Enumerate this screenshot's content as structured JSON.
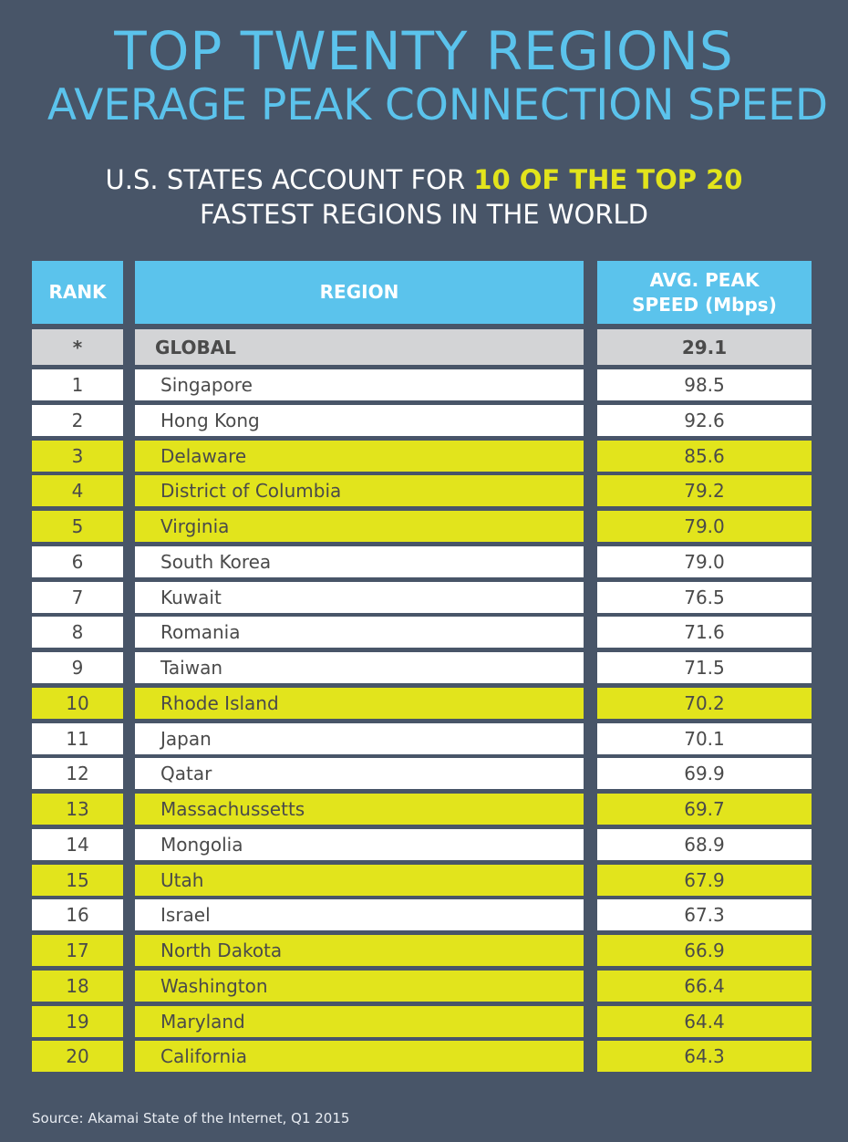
{
  "title_line1": "TOP TWENTY REGIONS",
  "title_line2": "AVERAGE PEAK CONNECTION SPEED",
  "subtitle": {
    "pre": "U.S. STATES ACCOUNT FOR ",
    "highlight": "10 OF THE TOP 20",
    "line2": "FASTEST REGIONS IN THE WORLD"
  },
  "colors": {
    "background": "#485568",
    "header": "#5bc3ec",
    "us_state_highlight": "#e2e41c",
    "global_row": "#d3d4d6",
    "row": "#ffffff"
  },
  "source": "Source: Akamai State of the Internet, Q1 2015",
  "chart_data": {
    "type": "table",
    "columns": [
      "RANK",
      "REGION",
      "AVG. PEAK SPEED (Mbps)"
    ],
    "global": {
      "rank": "*",
      "region": "GLOBAL",
      "speed": "29.1"
    },
    "rows": [
      {
        "rank": "1",
        "region": "Singapore",
        "speed": "98.5",
        "us_state": false
      },
      {
        "rank": "2",
        "region": "Hong Kong",
        "speed": "92.6",
        "us_state": false
      },
      {
        "rank": "3",
        "region": "Delaware",
        "speed": "85.6",
        "us_state": true
      },
      {
        "rank": "4",
        "region": "District of Columbia",
        "speed": "79.2",
        "us_state": true
      },
      {
        "rank": "5",
        "region": "Virginia",
        "speed": "79.0",
        "us_state": true
      },
      {
        "rank": "6",
        "region": "South Korea",
        "speed": "79.0",
        "us_state": false
      },
      {
        "rank": "7",
        "region": "Kuwait",
        "speed": "76.5",
        "us_state": false
      },
      {
        "rank": "8",
        "region": "Romania",
        "speed": "71.6",
        "us_state": false
      },
      {
        "rank": "9",
        "region": "Taiwan",
        "speed": "71.5",
        "us_state": false
      },
      {
        "rank": "10",
        "region": "Rhode Island",
        "speed": "70.2",
        "us_state": true
      },
      {
        "rank": "11",
        "region": "Japan",
        "speed": "70.1",
        "us_state": false
      },
      {
        "rank": "12",
        "region": "Qatar",
        "speed": "69.9",
        "us_state": false
      },
      {
        "rank": "13",
        "region": "Massachussetts",
        "speed": "69.7",
        "us_state": true
      },
      {
        "rank": "14",
        "region": "Mongolia",
        "speed": "68.9",
        "us_state": false
      },
      {
        "rank": "15",
        "region": "Utah",
        "speed": "67.9",
        "us_state": true
      },
      {
        "rank": "16",
        "region": "Israel",
        "speed": "67.3",
        "us_state": false
      },
      {
        "rank": "17",
        "region": "North Dakota",
        "speed": "66.9",
        "us_state": true
      },
      {
        "rank": "18",
        "region": "Washington",
        "speed": "66.4",
        "us_state": true
      },
      {
        "rank": "19",
        "region": "Maryland",
        "speed": "64.4",
        "us_state": true
      },
      {
        "rank": "20",
        "region": "California",
        "speed": "64.3",
        "us_state": true
      }
    ]
  }
}
